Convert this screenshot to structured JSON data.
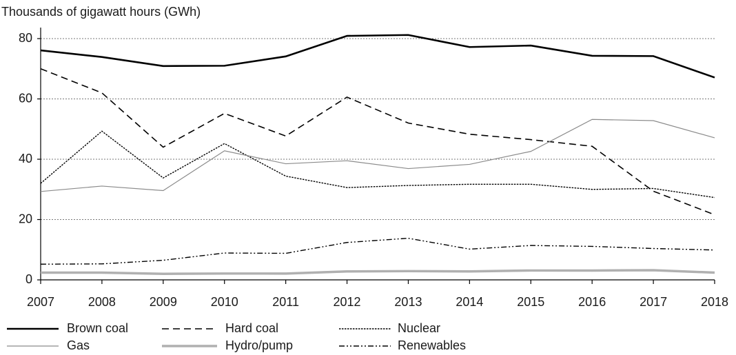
{
  "chart_data": {
    "type": "line",
    "y_label": "Thousands of gigawatt hours (GWh)",
    "x": [
      2007,
      2008,
      2009,
      2010,
      2011,
      2012,
      2013,
      2014,
      2015,
      2016,
      2017,
      2018
    ],
    "xlim": [
      2007,
      2018
    ],
    "xticks": [
      2007,
      2008,
      2009,
      2010,
      2011,
      2012,
      2013,
      2014,
      2015,
      2016,
      2017,
      2018
    ],
    "ylim": [
      0,
      80
    ],
    "yticks": [
      0,
      20,
      40,
      60,
      80
    ],
    "grid": true,
    "legend": "bottom",
    "series": [
      {
        "name": "Brown coal",
        "color": "#000000",
        "values": [
          76.1,
          73.9,
          70.9,
          71.0,
          74.1,
          80.9,
          81.2,
          77.2,
          77.7,
          74.3,
          74.2,
          67.1
        ]
      },
      {
        "name": "Hard coal",
        "color": "#000000",
        "values": [
          70.0,
          62.0,
          44.0,
          55.2,
          47.7,
          60.6,
          52.0,
          48.3,
          46.5,
          44.3,
          29.4,
          21.6
        ]
      },
      {
        "name": "Nuclear",
        "color": "#000000",
        "values": [
          32.0,
          49.3,
          33.8,
          45.2,
          34.4,
          30.6,
          31.3,
          31.7,
          31.7,
          30.0,
          30.3,
          27.3
        ]
      },
      {
        "name": "Gas",
        "color": "#8a8a8a",
        "values": [
          29.3,
          31.1,
          29.6,
          42.8,
          38.5,
          39.5,
          36.9,
          38.3,
          42.6,
          53.2,
          52.8,
          47.1
        ]
      },
      {
        "name": "Hydro/pump",
        "color": "#b0b0b0",
        "values": [
          2.4,
          2.4,
          2.0,
          2.1,
          2.1,
          2.8,
          2.9,
          2.8,
          3.1,
          3.1,
          3.2,
          2.4
        ]
      },
      {
        "name": "Renewables",
        "color": "#000000",
        "values": [
          5.2,
          5.3,
          6.5,
          8.9,
          8.8,
          12.4,
          13.8,
          10.2,
          11.4,
          11.1,
          10.4,
          9.9
        ]
      }
    ]
  }
}
